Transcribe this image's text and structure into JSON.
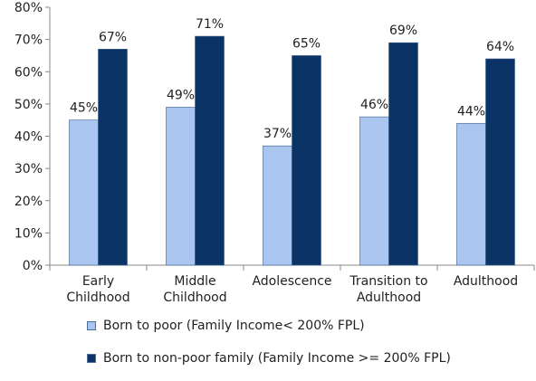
{
  "chart_data": {
    "type": "bar",
    "categories": [
      [
        "Early",
        "Childhood"
      ],
      [
        "Middle",
        "Childhood"
      ],
      [
        "Adolescence"
      ],
      [
        "Transition to",
        "Adulthood"
      ],
      [
        "Adulthood"
      ]
    ],
    "series": [
      {
        "name": "Born to poor (Family Income< 200% FPL)",
        "color": "#a9c5f0",
        "values": [
          45,
          49,
          37,
          46,
          44
        ],
        "labels": [
          "45%",
          "49%",
          "37%",
          "46%",
          "44%"
        ]
      },
      {
        "name": "Born to non-poor family (Family Income >= 200% FPL)",
        "color": "#0b3366",
        "values": [
          67,
          71,
          65,
          69,
          64
        ],
        "labels": [
          "67%",
          "71%",
          "65%",
          "69%",
          "64%"
        ]
      }
    ],
    "y_ticks": [
      "0%",
      "10%",
      "20%",
      "30%",
      "40%",
      "50%",
      "60%",
      "70%",
      "80%"
    ],
    "ylim": [
      0,
      80
    ],
    "grid": false,
    "legend_position": "bottom"
  }
}
